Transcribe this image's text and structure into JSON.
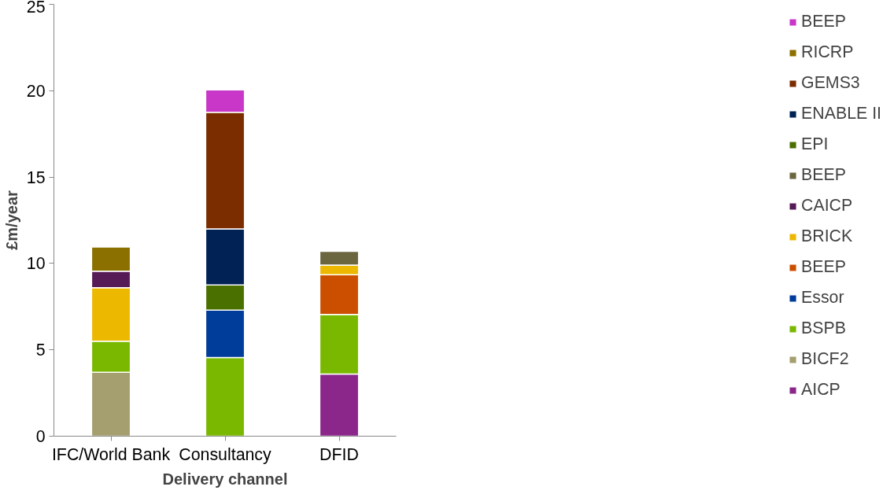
{
  "chart_data": {
    "type": "bar",
    "stacked": true,
    "xlabel": "Delivery channel",
    "ylabel": "£m/year",
    "categories": [
      "IFC/World Bank",
      "Consultancy",
      "DFID"
    ],
    "ylim": [
      0,
      25
    ],
    "yticks": [
      0,
      5,
      10,
      15,
      20,
      25
    ],
    "grid": false,
    "legend": "right",
    "series": [
      {
        "name": "AICP",
        "color": "#8b278b",
        "values": [
          null,
          null,
          3.6
        ]
      },
      {
        "name": "BICF2",
        "color": "#a59e6f",
        "values": [
          3.7,
          null,
          null
        ]
      },
      {
        "name": "BSPB",
        "color": "#7ab800",
        "values": [
          1.8,
          4.55,
          3.45
        ]
      },
      {
        "name": "Essor",
        "color": "#003c99",
        "values": [
          null,
          2.75,
          null
        ]
      },
      {
        "name": "BEEP",
        "color": "#cc4f00",
        "values": [
          null,
          null,
          2.3
        ]
      },
      {
        "name": "BRICK",
        "color": "#ecb800",
        "values": [
          3.1,
          null,
          0.55
        ]
      },
      {
        "name": "CAICP",
        "color": "#561a56",
        "values": [
          0.95,
          null,
          null
        ]
      },
      {
        "name": "BEEP",
        "color": "#6b6640",
        "values": [
          null,
          null,
          0.8
        ]
      },
      {
        "name": "EPI",
        "color": "#4a7000",
        "values": [
          null,
          1.45,
          null
        ]
      },
      {
        "name": "ENABLE II",
        "color": "#002255",
        "values": [
          null,
          3.25,
          null
        ]
      },
      {
        "name": "GEMS3",
        "color": "#7b2d00",
        "values": [
          null,
          6.75,
          null
        ]
      },
      {
        "name": "RICRP",
        "color": "#8b7000",
        "values": [
          1.4,
          null,
          null
        ]
      },
      {
        "name": "BEEP",
        "color": "#c837c8",
        "values": [
          null,
          1.3,
          null
        ]
      }
    ]
  }
}
